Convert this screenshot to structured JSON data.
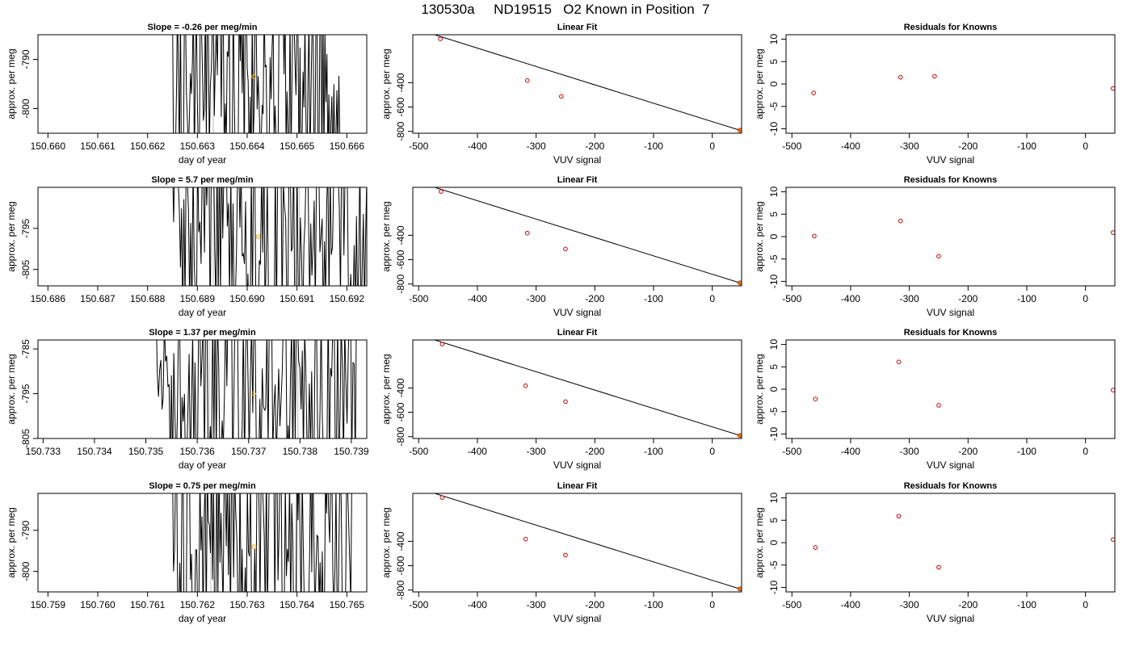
{
  "main_title": "130530a     ND19515   O2 Known in Position  7",
  "colors": {
    "trace": "#000000",
    "marker_orange": "#ffa500",
    "marker_red": "#cc0000",
    "vline_gray": "#bebebe"
  },
  "chart_data": [
    {
      "type": "line",
      "title": "Slope =  -0.26  per meg/min",
      "xlabel": "day of year",
      "ylabel": "approx. per meg",
      "xlim": [
        150.6598,
        150.6664
      ],
      "ylim": [
        -805,
        -785
      ],
      "xticks": [
        150.66,
        150.661,
        150.662,
        150.663,
        150.664,
        150.665,
        150.666
      ],
      "xtick_labels": [
        "150.660",
        "150.661",
        "150.662",
        "150.663",
        "150.664",
        "150.665",
        "150.666"
      ],
      "yticks": [
        -790,
        -800
      ],
      "ytick_labels": [
        "-790",
        "-800"
      ],
      "gray_vlines": [
        150.66332,
        150.66413
      ],
      "trace_range": [
        150.6625,
        150.6659
      ],
      "trace_seed": 11,
      "mean_point": {
        "x": 150.66413,
        "y": -793.5
      }
    },
    {
      "type": "scatter",
      "title": "Linear Fit",
      "xlabel": "VUV signal",
      "ylabel": "approx. per meg",
      "xlim": [
        -510,
        50
      ],
      "ylim": [
        -815,
        -6
      ],
      "xticks": [
        -500,
        -400,
        -300,
        -200,
        -100,
        0
      ],
      "xtick_labels": [
        "-500",
        "-400",
        "-300",
        "-200",
        "-100",
        "0"
      ],
      "yticks": [
        -400,
        -600,
        -800
      ],
      "ytick_labels": [
        "-400",
        "-600",
        "-800"
      ],
      "points": [
        {
          "x": -463,
          "y": -40
        },
        {
          "x": -315,
          "y": -382
        },
        {
          "x": -257,
          "y": -513
        },
        {
          "x": 47,
          "y": -790
        }
      ],
      "fit_line": [
        {
          "x": -484,
          "y": 11
        },
        {
          "x": 48,
          "y": -792
        }
      ]
    },
    {
      "type": "scatter",
      "title": "Residuals for Knowns",
      "xlabel": "VUV signal",
      "ylabel": "approx. per meg",
      "xlim": [
        -510,
        50
      ],
      "ylim": [
        -11,
        11
      ],
      "xticks": [
        -500,
        -400,
        -300,
        -200,
        -100,
        0
      ],
      "xtick_labels": [
        "-500",
        "-400",
        "-300",
        "-200",
        "-100",
        "0"
      ],
      "yticks": [
        10,
        5,
        0,
        -5,
        -10
      ],
      "ytick_labels": [
        "10",
        "5",
        "0",
        "-5",
        "-10"
      ],
      "points": [
        {
          "x": -463,
          "y": -2.0
        },
        {
          "x": -315,
          "y": 1.5
        },
        {
          "x": -257,
          "y": 1.7
        },
        {
          "x": 47,
          "y": -1.0
        }
      ]
    },
    {
      "type": "line",
      "title": "Slope =  5.7  per meg/min",
      "xlabel": "day of year",
      "ylabel": "approx. per meg",
      "xlim": [
        150.6858,
        150.6924
      ],
      "ylim": [
        -809,
        -785
      ],
      "xticks": [
        150.686,
        150.687,
        150.688,
        150.689,
        150.69,
        150.691,
        150.692
      ],
      "xtick_labels": [
        "150.686",
        "150.687",
        "150.688",
        "150.689",
        "150.690",
        "150.691",
        "150.692"
      ],
      "yticks": [
        -795,
        -805
      ],
      "ytick_labels": [
        "-795",
        "-805"
      ],
      "gray_vlines": [
        150.68932,
        150.69105
      ],
      "trace_range": [
        150.6885,
        150.6924
      ],
      "trace_seed": 23,
      "mean_point": {
        "x": 150.69022,
        "y": -797
      }
    },
    {
      "type": "scatter",
      "title": "Linear Fit",
      "xlabel": "VUV signal",
      "ylabel": "approx. per meg",
      "xlim": [
        -510,
        50
      ],
      "ylim": [
        -815,
        -6
      ],
      "xticks": [
        -500,
        -400,
        -300,
        -200,
        -100,
        0
      ],
      "xtick_labels": [
        "-500",
        "-400",
        "-300",
        "-200",
        "-100",
        "0"
      ],
      "yticks": [
        -400,
        -600,
        -800
      ],
      "ytick_labels": [
        "-400",
        "-600",
        "-800"
      ],
      "points": [
        {
          "x": -462,
          "y": -40
        },
        {
          "x": -315,
          "y": -382
        },
        {
          "x": -250,
          "y": -513
        },
        {
          "x": 47,
          "y": -790
        }
      ],
      "fit_line": [
        {
          "x": -484,
          "y": 11
        },
        {
          "x": 48,
          "y": -792
        }
      ]
    },
    {
      "type": "scatter",
      "title": "Residuals for Knowns",
      "xlabel": "VUV signal",
      "ylabel": "approx. per meg",
      "xlim": [
        -510,
        50
      ],
      "ylim": [
        -11,
        11
      ],
      "xticks": [
        -500,
        -400,
        -300,
        -200,
        -100,
        0
      ],
      "xtick_labels": [
        "-500",
        "-400",
        "-300",
        "-200",
        "-100",
        "0"
      ],
      "yticks": [
        10,
        5,
        0,
        -5,
        -10
      ],
      "ytick_labels": [
        "10",
        "5",
        "0",
        "-5",
        "-10"
      ],
      "points": [
        {
          "x": -462,
          "y": 0.1
        },
        {
          "x": -315,
          "y": 3.5
        },
        {
          "x": -250,
          "y": -4.4
        },
        {
          "x": 47,
          "y": 0.9
        }
      ]
    },
    {
      "type": "line",
      "title": "Slope =  1.37  per meg/min",
      "xlabel": "day of year",
      "ylabel": "approx. per meg",
      "xlim": [
        150.7329,
        150.7393
      ],
      "ylim": [
        -805,
        -783
      ],
      "xticks": [
        150.733,
        150.734,
        150.735,
        150.736,
        150.737,
        150.738,
        150.739
      ],
      "xtick_labels": [
        "150.733",
        "150.734",
        "150.735",
        "150.736",
        "150.737",
        "150.738",
        "150.739"
      ],
      "yticks": [
        -785,
        -795,
        -805
      ],
      "ytick_labels": [
        "-785",
        "-795",
        "-805"
      ],
      "gray_vlines": [
        150.73623,
        150.73796
      ],
      "trace_range": [
        150.7352,
        150.7391
      ],
      "trace_seed": 37,
      "mean_point": {
        "x": 150.7371,
        "y": -795
      }
    },
    {
      "type": "scatter",
      "title": "Linear Fit",
      "xlabel": "VUV signal",
      "ylabel": "approx. per meg",
      "xlim": [
        -510,
        50
      ],
      "ylim": [
        -815,
        -6
      ],
      "xticks": [
        -500,
        -400,
        -300,
        -200,
        -100,
        0
      ],
      "xtick_labels": [
        "-500",
        "-400",
        "-300",
        "-200",
        "-100",
        "0"
      ],
      "yticks": [
        -400,
        -600,
        -800
      ],
      "ytick_labels": [
        "-400",
        "-600",
        "-800"
      ],
      "points": [
        {
          "x": -460,
          "y": -40
        },
        {
          "x": -318,
          "y": -382
        },
        {
          "x": -250,
          "y": -513
        },
        {
          "x": 47,
          "y": -790
        }
      ],
      "fit_line": [
        {
          "x": -484,
          "y": 11
        },
        {
          "x": 48,
          "y": -792
        }
      ]
    },
    {
      "type": "scatter",
      "title": "Residuals for Knowns",
      "xlabel": "VUV signal",
      "ylabel": "approx. per meg",
      "xlim": [
        -510,
        50
      ],
      "ylim": [
        -11,
        11
      ],
      "xticks": [
        -500,
        -400,
        -300,
        -200,
        -100,
        0
      ],
      "xtick_labels": [
        "-500",
        "-400",
        "-300",
        "-200",
        "-100",
        "0"
      ],
      "yticks": [
        10,
        5,
        0,
        -5,
        -10
      ],
      "ytick_labels": [
        "10",
        "5",
        "0",
        "-5",
        "-10"
      ],
      "points": [
        {
          "x": -460,
          "y": -2.2
        },
        {
          "x": -318,
          "y": 6.1
        },
        {
          "x": -250,
          "y": -3.6
        },
        {
          "x": 47,
          "y": -0.2
        }
      ]
    },
    {
      "type": "line",
      "title": "Slope =  0.75  per meg/min",
      "xlabel": "day of year",
      "ylabel": "approx. per meg",
      "xlim": [
        150.7588,
        150.7654
      ],
      "ylim": [
        -805,
        -781
      ],
      "xticks": [
        150.759,
        150.76,
        150.761,
        150.762,
        150.763,
        150.764,
        150.765
      ],
      "xtick_labels": [
        "150.759",
        "150.760",
        "150.761",
        "150.762",
        "150.763",
        "150.764",
        "150.765"
      ],
      "yticks": [
        -790,
        -800
      ],
      "ytick_labels": [
        "-790",
        "-800"
      ],
      "gray_vlines": [
        150.76227,
        150.764
      ],
      "trace_range": [
        150.7615,
        150.7651
      ],
      "trace_seed": 53,
      "mean_point": {
        "x": 150.76314,
        "y": -794
      }
    },
    {
      "type": "scatter",
      "title": "Linear Fit",
      "xlabel": "VUV signal",
      "ylabel": "approx. per meg",
      "xlim": [
        -510,
        50
      ],
      "ylim": [
        -815,
        -6
      ],
      "xticks": [
        -500,
        -400,
        -300,
        -200,
        -100,
        0
      ],
      "xtick_labels": [
        "-500",
        "-400",
        "-300",
        "-200",
        "-100",
        "0"
      ],
      "yticks": [
        -400,
        -600,
        -800
      ],
      "ytick_labels": [
        "-400",
        "-600",
        "-800"
      ],
      "points": [
        {
          "x": -460,
          "y": -40
        },
        {
          "x": -318,
          "y": -382
        },
        {
          "x": -250,
          "y": -513
        },
        {
          "x": 47,
          "y": -790
        }
      ],
      "fit_line": [
        {
          "x": -484,
          "y": 11
        },
        {
          "x": 48,
          "y": -792
        }
      ]
    },
    {
      "type": "scatter",
      "title": "Residuals for Knowns",
      "xlabel": "VUV signal",
      "ylabel": "approx. per meg",
      "xlim": [
        -510,
        50
      ],
      "ylim": [
        -11,
        11
      ],
      "xticks": [
        -500,
        -400,
        -300,
        -200,
        -100,
        0
      ],
      "xtick_labels": [
        "-500",
        "-400",
        "-300",
        "-200",
        "-100",
        "0"
      ],
      "yticks": [
        10,
        5,
        0,
        -5,
        -10
      ],
      "ytick_labels": [
        "10",
        "5",
        "0",
        "-5",
        "-10"
      ],
      "points": [
        {
          "x": -460,
          "y": -1.1
        },
        {
          "x": -318,
          "y": 5.9
        },
        {
          "x": -250,
          "y": -5.5
        },
        {
          "x": 47,
          "y": 0.7
        }
      ]
    }
  ]
}
